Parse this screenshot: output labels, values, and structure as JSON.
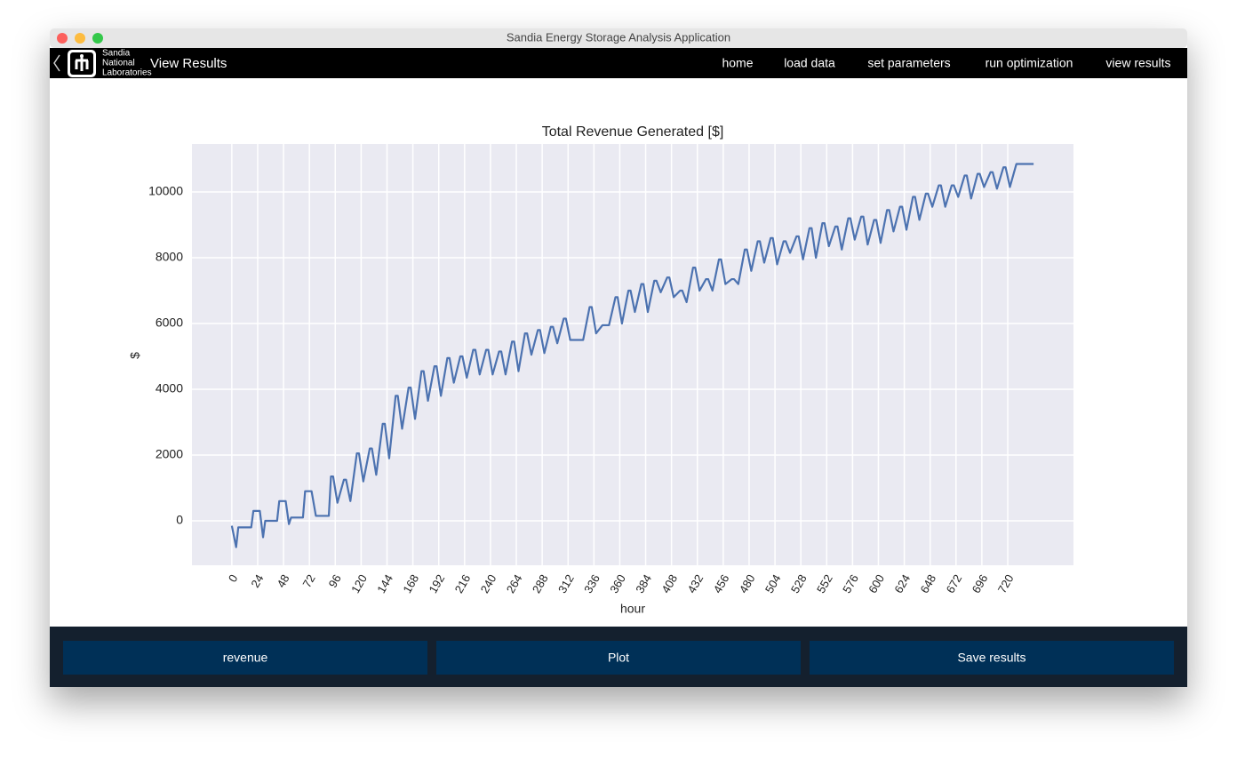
{
  "window": {
    "title": "Sandia Energy Storage Analysis Application"
  },
  "nav": {
    "brand": [
      "Sandia",
      "National",
      "Laboratories"
    ],
    "page_title": "View Results",
    "links": [
      "home",
      "load data",
      "set parameters",
      "run optimization",
      "view results"
    ]
  },
  "chart_data": {
    "type": "line",
    "title": "Total Revenue Generated [$]",
    "x_label": "hour",
    "y_label": "$",
    "grid": true,
    "xlim": [
      -37,
      781
    ],
    "ylim": [
      -1351,
      11459
    ],
    "xticks": [
      0,
      24,
      48,
      72,
      96,
      120,
      144,
      168,
      192,
      216,
      240,
      264,
      288,
      312,
      336,
      360,
      384,
      408,
      432,
      456,
      480,
      504,
      528,
      552,
      576,
      600,
      624,
      648,
      672,
      696,
      720
    ],
    "yticks": [
      0,
      2000,
      4000,
      6000,
      8000,
      10000
    ],
    "series": [
      {
        "color": "#4c72b0",
        "x": [
          0,
          4,
          6,
          18,
          20,
          26,
          29,
          31,
          42,
          44,
          50,
          53,
          55,
          66,
          68,
          74,
          78,
          90,
          92,
          94,
          98,
          104,
          106,
          110,
          116,
          118,
          122,
          128,
          130,
          134,
          140,
          142,
          146,
          152,
          154,
          158,
          164,
          166,
          170,
          176,
          178,
          182,
          188,
          190,
          194,
          200,
          202,
          206,
          212,
          214,
          218,
          224,
          226,
          230,
          236,
          238,
          242,
          248,
          250,
          254,
          260,
          262,
          266,
          272,
          274,
          278,
          284,
          286,
          290,
          296,
          298,
          302,
          308,
          310,
          314,
          320,
          322,
          326,
          332,
          334,
          338,
          344,
          346,
          350,
          356,
          358,
          362,
          368,
          370,
          374,
          380,
          382,
          386,
          392,
          394,
          398,
          404,
          406,
          410,
          416,
          418,
          422,
          428,
          430,
          434,
          440,
          442,
          446,
          452,
          454,
          458,
          464,
          466,
          470,
          476,
          478,
          482,
          488,
          490,
          494,
          500,
          502,
          506,
          512,
          514,
          518,
          524,
          526,
          530,
          536,
          538,
          542,
          548,
          550,
          554,
          560,
          562,
          566,
          572,
          574,
          578,
          584,
          586,
          590,
          596,
          598,
          602,
          608,
          610,
          614,
          620,
          622,
          626,
          632,
          634,
          638,
          644,
          646,
          650,
          656,
          658,
          662,
          668,
          670,
          674,
          680,
          682,
          686,
          692,
          694,
          698,
          704,
          706,
          710,
          716,
          718,
          722,
          728,
          744
        ],
        "values": [
          -150,
          -800,
          -200,
          -200,
          300,
          300,
          -500,
          0,
          0,
          600,
          600,
          -100,
          100,
          100,
          900,
          900,
          150,
          150,
          1350,
          1350,
          550,
          1250,
          1250,
          600,
          2050,
          2050,
          1200,
          2200,
          2200,
          1400,
          2950,
          2950,
          1900,
          3800,
          3800,
          2800,
          4050,
          4050,
          3100,
          4550,
          4550,
          3650,
          4700,
          4700,
          3800,
          4950,
          4950,
          4200,
          5000,
          5000,
          4350,
          5200,
          5200,
          4450,
          5200,
          5200,
          4450,
          5150,
          5150,
          4450,
          5450,
          5450,
          4550,
          5700,
          5700,
          5050,
          5800,
          5800,
          5100,
          5900,
          5900,
          5400,
          6150,
          6150,
          5500,
          5500,
          5500,
          5500,
          6500,
          6500,
          5700,
          5950,
          5950,
          5950,
          6800,
          6800,
          6000,
          7000,
          7000,
          6350,
          7200,
          7200,
          6350,
          7300,
          7300,
          6950,
          7400,
          7400,
          6800,
          7000,
          7000,
          6650,
          7700,
          7700,
          7000,
          7350,
          7350,
          7000,
          7950,
          7950,
          7200,
          7350,
          7350,
          7200,
          8250,
          8250,
          7600,
          8500,
          8500,
          7850,
          8600,
          8600,
          7800,
          8500,
          8500,
          8150,
          8650,
          8650,
          7950,
          8900,
          8900,
          8000,
          9050,
          9050,
          8350,
          8950,
          8950,
          8250,
          9200,
          9200,
          8550,
          9250,
          9250,
          8400,
          9150,
          9150,
          8450,
          9450,
          9450,
          8800,
          9550,
          9550,
          8850,
          9850,
          9850,
          9150,
          9950,
          9950,
          9550,
          10200,
          10200,
          9550,
          10200,
          10200,
          9850,
          10500,
          10500,
          9800,
          10550,
          10550,
          10150,
          10600,
          10600,
          10100,
          10750,
          10750,
          10150,
          10850,
          10850
        ]
      }
    ]
  },
  "buttons": [
    "revenue",
    "Plot",
    "Save results"
  ]
}
